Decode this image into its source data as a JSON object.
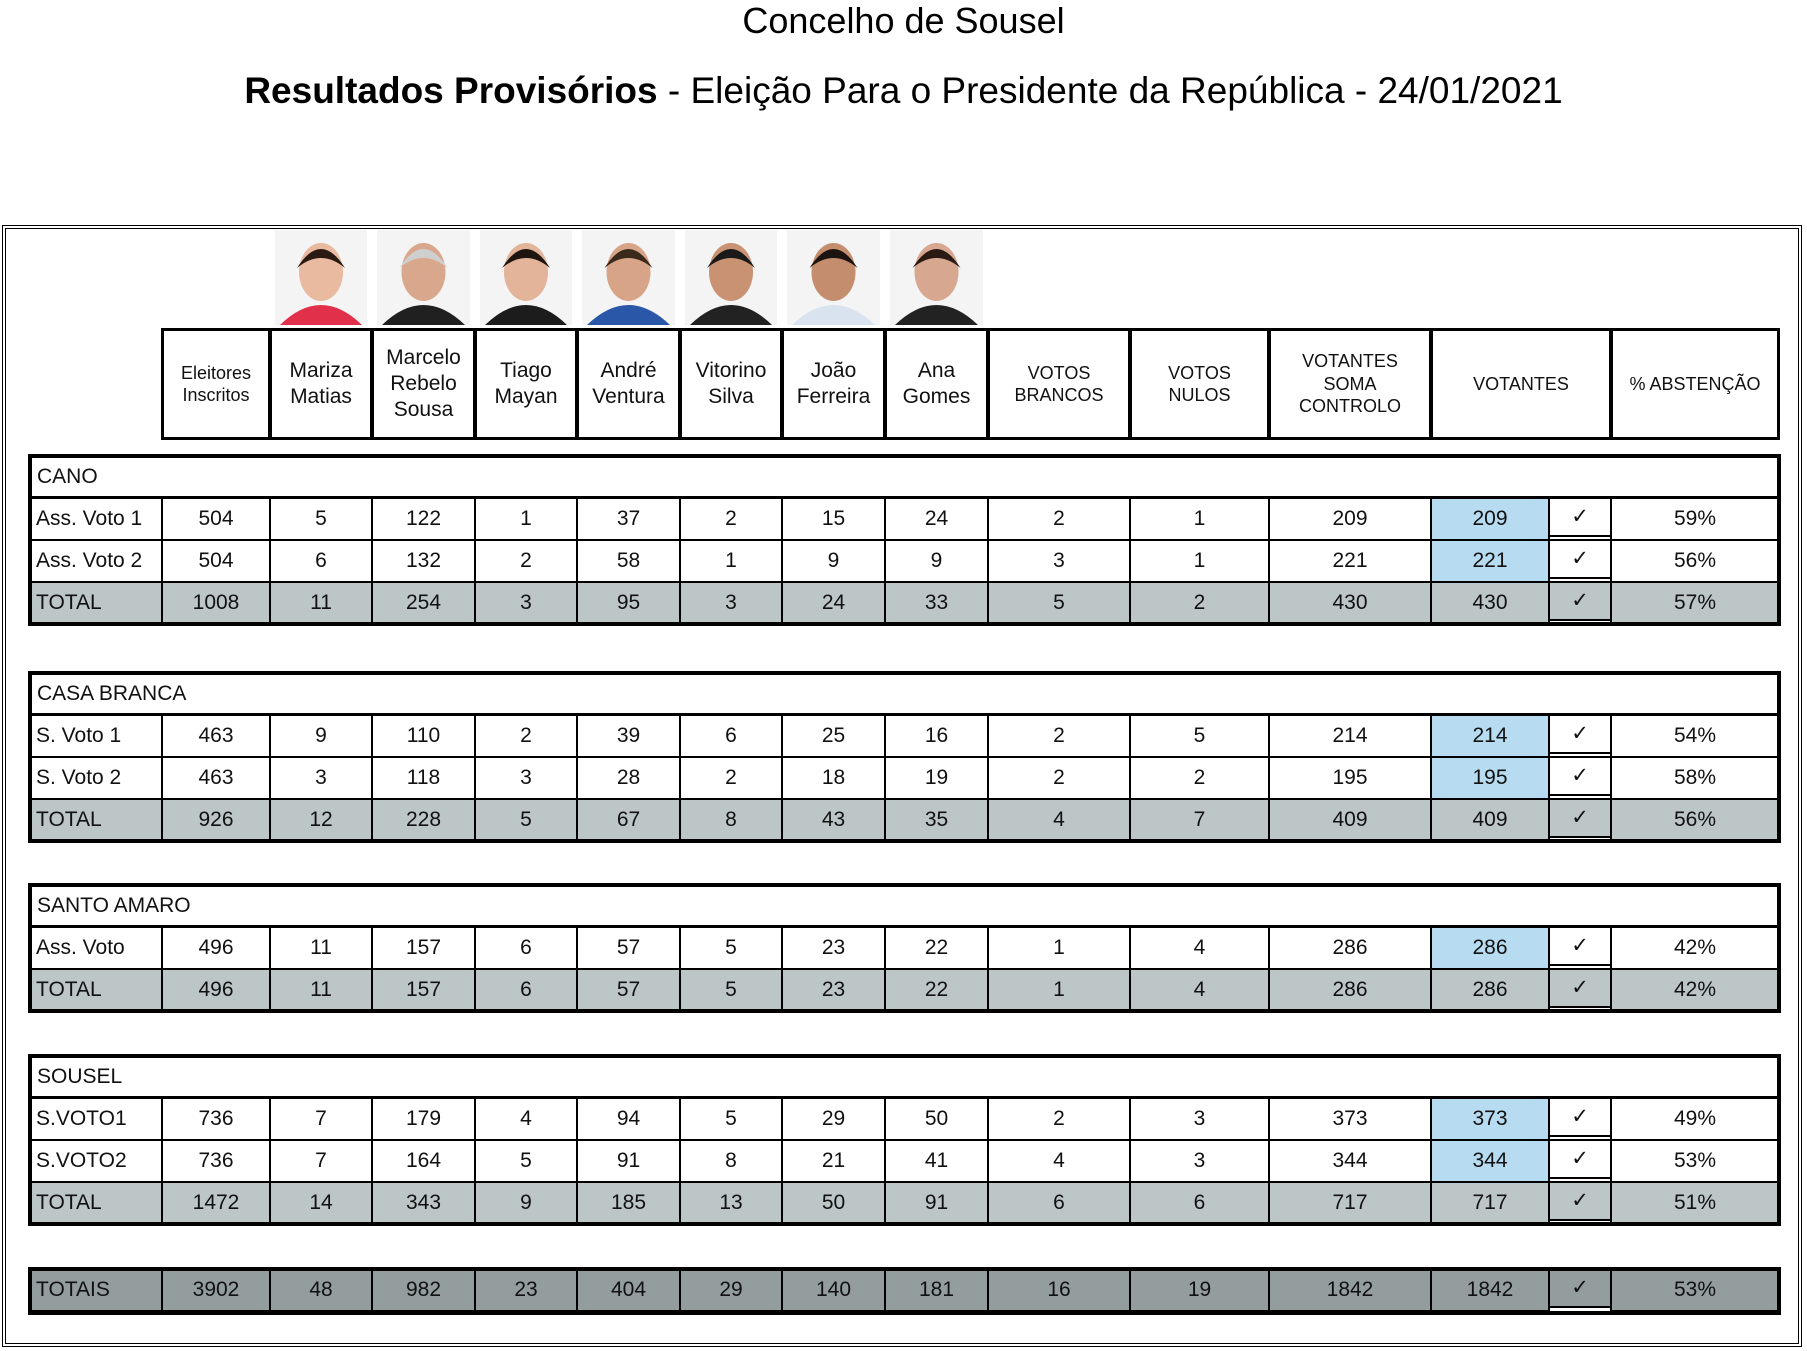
{
  "header": {
    "title": "Concelho de Sousel",
    "subtitle_bold": "Resultados Provisórios",
    "subtitle_rest": "- Eleição Para o Presidente da República - 24/01/2021"
  },
  "check_mark": "✓",
  "columns": [
    [
      "Eleitores",
      "Inscritos"
    ],
    [
      "Mariza",
      "Matias"
    ],
    [
      "Marcelo",
      "Rebelo",
      "Sousa"
    ],
    [
      "Tiago",
      "Mayan"
    ],
    [
      "André",
      "Ventura"
    ],
    [
      "Vitorino",
      "Silva"
    ],
    [
      "João",
      "Ferreira"
    ],
    [
      "Ana",
      "Gomes"
    ],
    [
      "VOTOS",
      "BRANCOS"
    ],
    [
      "VOTOS",
      "NULOS"
    ],
    [
      "VOTANTES",
      "SOMA",
      "CONTROLO"
    ],
    [
      "VOTANTES"
    ],
    [
      "% ABSTENÇÃO"
    ]
  ],
  "sections": [
    {
      "name": "CANO",
      "rows": [
        {
          "label": "Ass. Voto 1",
          "cells": [
            504,
            5,
            122,
            1,
            37,
            2,
            15,
            24,
            2,
            1,
            209,
            209,
            "59%"
          ]
        },
        {
          "label": "Ass. Voto 2",
          "cells": [
            504,
            6,
            132,
            2,
            58,
            1,
            9,
            9,
            3,
            1,
            221,
            221,
            "56%"
          ]
        }
      ],
      "total": {
        "label": "TOTAL",
        "cells": [
          1008,
          11,
          254,
          3,
          95,
          3,
          24,
          33,
          5,
          2,
          430,
          430,
          "57%"
        ]
      }
    },
    {
      "name": "CASA BRANCA",
      "rows": [
        {
          "label": "S. Voto 1",
          "cells": [
            463,
            9,
            110,
            2,
            39,
            6,
            25,
            16,
            2,
            5,
            214,
            214,
            "54%"
          ]
        },
        {
          "label": "S. Voto 2",
          "cells": [
            463,
            3,
            118,
            3,
            28,
            2,
            18,
            19,
            2,
            2,
            195,
            195,
            "58%"
          ]
        }
      ],
      "total": {
        "label": "TOTAL",
        "cells": [
          926,
          12,
          228,
          5,
          67,
          8,
          43,
          35,
          4,
          7,
          409,
          409,
          "56%"
        ]
      }
    },
    {
      "name": "SANTO AMARO",
      "rows": [
        {
          "label": "Ass. Voto",
          "cells": [
            496,
            11,
            157,
            6,
            57,
            5,
            23,
            22,
            1,
            4,
            286,
            286,
            "42%"
          ]
        }
      ],
      "total": {
        "label": "TOTAL",
        "cells": [
          496,
          11,
          157,
          6,
          57,
          5,
          23,
          22,
          1,
          4,
          286,
          286,
          "42%"
        ]
      }
    },
    {
      "name": "SOUSEL",
      "rows": [
        {
          "label": "S.VOTO1",
          "cells": [
            736,
            7,
            179,
            4,
            94,
            5,
            29,
            50,
            2,
            3,
            373,
            373,
            "49%"
          ]
        },
        {
          "label": "S.VOTO2",
          "cells": [
            736,
            7,
            164,
            5,
            91,
            8,
            21,
            41,
            4,
            3,
            344,
            344,
            "53%"
          ]
        }
      ],
      "total": {
        "label": "TOTAL",
        "cells": [
          1472,
          14,
          343,
          9,
          185,
          13,
          50,
          91,
          6,
          6,
          717,
          717,
          "51%"
        ]
      }
    }
  ],
  "totals": {
    "label": "TOTAIS",
    "cells": [
      3902,
      48,
      982,
      23,
      404,
      29,
      140,
      181,
      16,
      19,
      1842,
      1842,
      "53%"
    ]
  }
}
